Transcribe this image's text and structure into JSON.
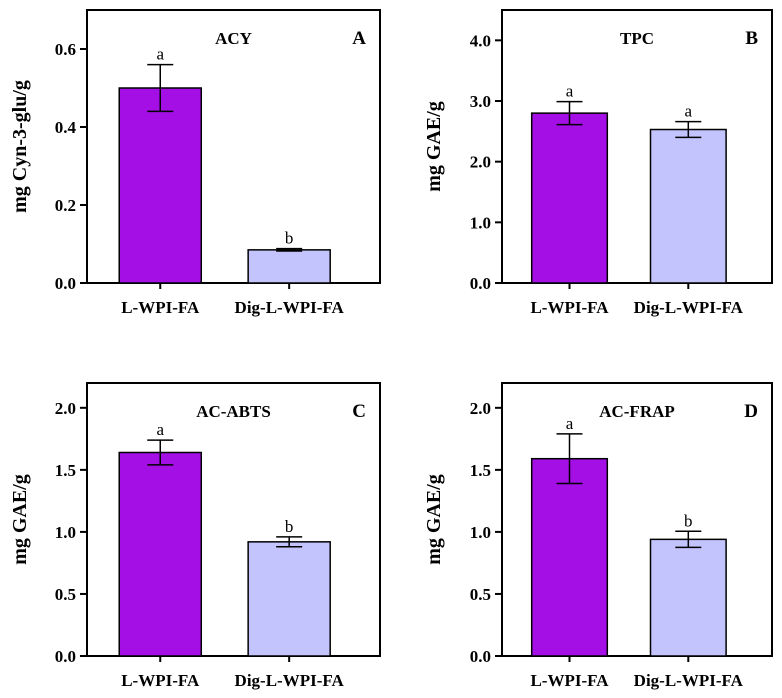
{
  "colors": {
    "bar1": "#a40fe6",
    "bar2": "#c3c3fd",
    "axis": "#000000"
  },
  "chart_data": [
    {
      "type": "bar",
      "title": "ACY",
      "panel": "A",
      "ylabel": "mg Cyn-3-glu/g",
      "categories": [
        "L-WPI-FA",
        "Dig-L-WPI-FA"
      ],
      "values": [
        0.5,
        0.085
      ],
      "errors": [
        0.06,
        0.003
      ],
      "significance": [
        "a",
        "b"
      ],
      "ylim": [
        0,
        0.7
      ],
      "yticks": [
        0,
        0.2,
        0.4,
        0.6
      ],
      "ytick_labels": [
        "0.0",
        "0.2",
        "0.4",
        "0.6"
      ]
    },
    {
      "type": "bar",
      "title": "TPC",
      "panel": "B",
      "ylabel": "mg GAE/g",
      "categories": [
        "L-WPI-FA",
        "Dig-L-WPI-FA"
      ],
      "values": [
        2.8,
        2.53
      ],
      "errors": [
        0.19,
        0.13
      ],
      "significance": [
        "a",
        "a"
      ],
      "ylim": [
        0,
        4.5
      ],
      "yticks": [
        0,
        1,
        2,
        3,
        4
      ],
      "ytick_labels": [
        "0.0",
        "1.0",
        "2.0",
        "3.0",
        "4.0"
      ]
    },
    {
      "type": "bar",
      "title": "AC-ABTS",
      "panel": "C",
      "ylabel": "mg GAE/g",
      "categories": [
        "L-WPI-FA",
        "Dig-L-WPI-FA"
      ],
      "values": [
        1.64,
        0.92
      ],
      "errors": [
        0.1,
        0.04
      ],
      "significance": [
        "a",
        "b"
      ],
      "ylim": [
        0,
        2.2
      ],
      "yticks": [
        0,
        0.5,
        1,
        1.5,
        2
      ],
      "ytick_labels": [
        "0.0",
        "0.5",
        "1.0",
        "1.5",
        "2.0"
      ]
    },
    {
      "type": "bar",
      "title": "AC-FRAP",
      "panel": "D",
      "ylabel": "mg GAE/g",
      "categories": [
        "L-WPI-FA",
        "Dig-L-WPI-FA"
      ],
      "values": [
        1.59,
        0.94
      ],
      "errors": [
        0.2,
        0.065
      ],
      "significance": [
        "a",
        "b"
      ],
      "ylim": [
        0,
        2.2
      ],
      "yticks": [
        0,
        0.5,
        1,
        1.5,
        2
      ],
      "ytick_labels": [
        "0.0",
        "0.5",
        "1.0",
        "1.5",
        "2.0"
      ]
    }
  ]
}
